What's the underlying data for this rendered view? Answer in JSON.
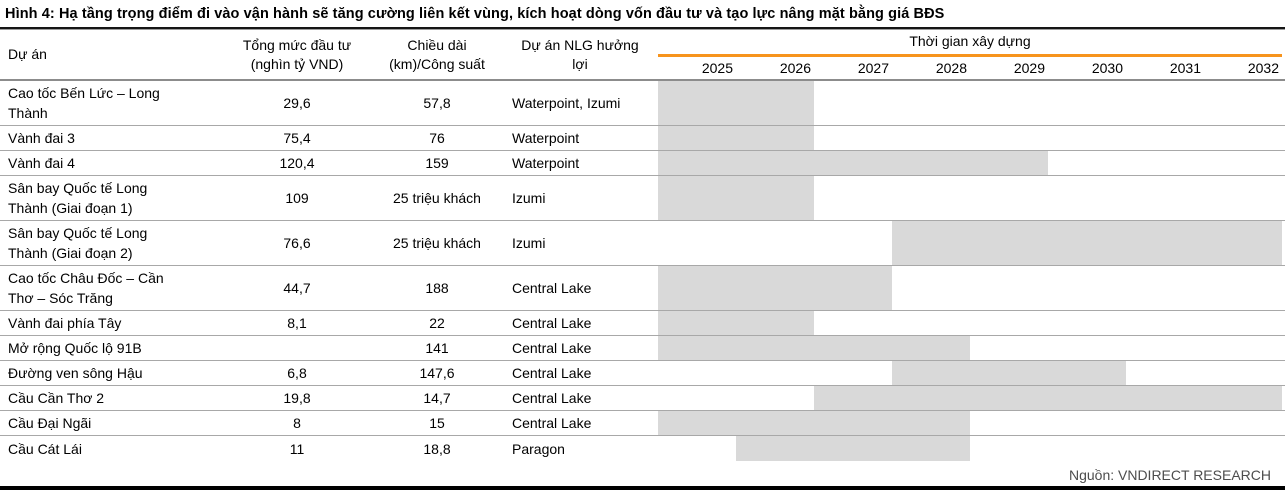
{
  "title": "Hình 4: Hạ tầng trọng điểm đi vào vận hành sẽ tăng cường liên kết vùng, kích hoạt dòng vốn đầu tư và tạo lực nâng mặt bằng giá BĐS",
  "source": "Nguồn: VNDIRECT RESEARCH",
  "colors": {
    "accent_orange": "#F7941D",
    "bar_gray": "#D9D9D9",
    "row_rule_gray": "#A8A8A8",
    "header_rule_gray": "#8C8C8C",
    "source_text": "#4D4D4D",
    "black_rule": "#000000"
  },
  "table": {
    "headers": {
      "project": "Dự án",
      "investment": [
        "Tổng mức đầu tư",
        "(nghìn tỷ VND)"
      ],
      "length": [
        "Chiều dài",
        "(km)/Công suất"
      ],
      "beneficiary": [
        "Dự án NLG hưởng",
        "lợi"
      ],
      "timeline": "Thời gian xây dựng"
    },
    "years": [
      "2025",
      "2026",
      "2027",
      "2028",
      "2029",
      "2030",
      "2031",
      "2032"
    ],
    "rows": [
      {
        "project": "Cao tốc Bến Lức – Long Thành",
        "investment": "29,6",
        "length": "57,8",
        "beneficiary": "Waterpoint, Izumi",
        "start": 2025,
        "end": 2026
      },
      {
        "project": "Vành đai 3",
        "investment": "75,4",
        "length": "76",
        "beneficiary": "Waterpoint",
        "start": 2025,
        "end": 2026
      },
      {
        "project": "Vành đai 4",
        "investment": "120,4",
        "length": "159",
        "beneficiary": "Waterpoint",
        "start": 2025,
        "end": 2029
      },
      {
        "project": "Sân bay Quốc tế Long Thành (Giai đoạn 1)",
        "investment": "109",
        "length": "25 triệu khách",
        "beneficiary": "Izumi",
        "start": 2025,
        "end": 2026
      },
      {
        "project": "Sân bay Quốc tế Long Thành (Giai đoạn 2)",
        "investment": "76,6",
        "length": "25 triệu khách",
        "beneficiary": "Izumi",
        "start": 2028,
        "end": 2032
      },
      {
        "project": "Cao tốc Châu Đốc – Cần Thơ – Sóc Trăng",
        "investment": "44,7",
        "length": "188",
        "beneficiary": "Central Lake",
        "start": 2025,
        "end": 2027
      },
      {
        "project": "Vành đai phía Tây",
        "investment": "8,1",
        "length": "22",
        "beneficiary": "Central Lake",
        "start": 2025,
        "end": 2026
      },
      {
        "project": "Mở rộng Quốc lộ 91B",
        "investment": "",
        "length": "141",
        "beneficiary": "Central Lake",
        "start": 2025,
        "end": 2028
      },
      {
        "project": "Đường ven sông Hậu",
        "investment": "6,8",
        "length": "147,6",
        "beneficiary": "Central Lake",
        "start": 2028,
        "end": 2030
      },
      {
        "project": "Cầu Cần Thơ 2",
        "investment": "19,8",
        "length": "14,7",
        "beneficiary": "Central Lake",
        "start": 2027,
        "end": 2032
      },
      {
        "project": "Cầu Đại Ngãi",
        "investment": "8",
        "length": "15",
        "beneficiary": "Central Lake",
        "start": 2025,
        "end": 2028
      },
      {
        "project": "Cầu Cát Lái",
        "investment": "11",
        "length": "18,8",
        "beneficiary": "Paragon",
        "start": 2026,
        "end": 2028
      }
    ]
  },
  "chart_data": {
    "type": "table",
    "title": "Hình 4: Hạ tầng trọng điểm đi vào vận hành sẽ tăng cường liên kết vùng, kích hoạt dòng vốn đầu tư và tạo lực nâng mặt bằng giá BĐS",
    "columns": [
      "Dự án",
      "Tổng mức đầu tư (nghìn tỷ VND)",
      "Chiều dài (km)/Công suất",
      "Dự án NLG hưởng lợi",
      "Thời gian xây dựng"
    ],
    "timeline_axis": {
      "years": [
        2025,
        2026,
        2027,
        2028,
        2029,
        2030,
        2031,
        2032
      ],
      "bar_style": "gray-fill"
    },
    "rows": [
      [
        "Cao tốc Bến Lức – Long Thành",
        "29,6",
        "57,8",
        "Waterpoint, Izumi",
        "2025–2026"
      ],
      [
        "Vành đai 3",
        "75,4",
        "76",
        "Waterpoint",
        "2025–2026"
      ],
      [
        "Vành đai 4",
        "120,4",
        "159",
        "Waterpoint",
        "2025–2029"
      ],
      [
        "Sân bay Quốc tế Long Thành (Giai đoạn 1)",
        "109",
        "25 triệu khách",
        "Izumi",
        "2025–2026"
      ],
      [
        "Sân bay Quốc tế Long Thành (Giai đoạn 2)",
        "76,6",
        "25 triệu khách",
        "Izumi",
        "2028–2032"
      ],
      [
        "Cao tốc Châu Đốc – Cần Thơ – Sóc Trăng",
        "44,7",
        "188",
        "Central Lake",
        "2025–2027"
      ],
      [
        "Vành đai phía Tây",
        "8,1",
        "22",
        "Central Lake",
        "2025–2026"
      ],
      [
        "Mở rộng Quốc lộ 91B",
        "",
        "141",
        "Central Lake",
        "2025–2028"
      ],
      [
        "Đường ven sông Hậu",
        "6,8",
        "147,6",
        "Central Lake",
        "2028–2030"
      ],
      [
        "Cầu Cần Thơ 2",
        "19,8",
        "14,7",
        "Central Lake",
        "2027–2032"
      ],
      [
        "Cầu Đại Ngãi",
        "8",
        "15",
        "Central Lake",
        "2025–2028"
      ],
      [
        "Cầu Cát Lái",
        "11",
        "18,8",
        "Paragon",
        "2026–2028"
      ]
    ],
    "source": "Nguồn: VNDIRECT RESEARCH"
  }
}
